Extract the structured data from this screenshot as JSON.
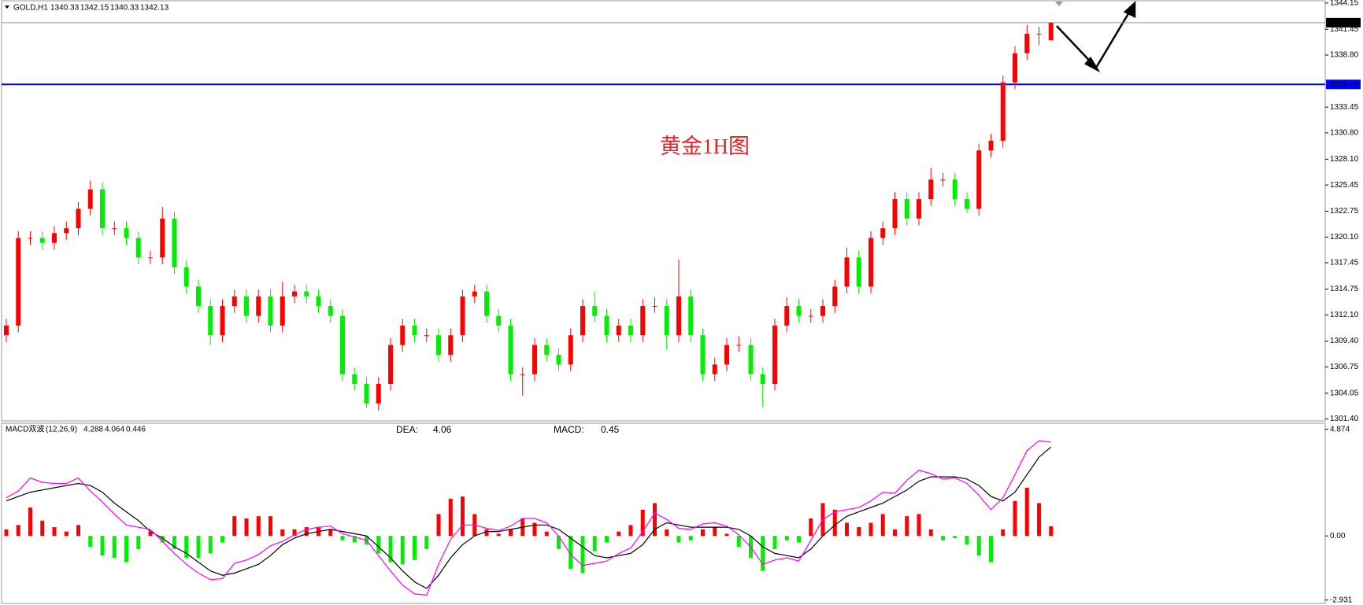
{
  "chart_data": [
    {
      "type": "candlestick",
      "header": {
        "symbol": "GOLD,H1",
        "open": 1340.33,
        "high": 1342.15,
        "low": 1340.33,
        "close": 1342.13
      },
      "annotation": "黄金1H图",
      "current_price": 1342.13,
      "hline": {
        "value": 1335.79,
        "color": "#0000ff"
      },
      "up_color": "#ff0000",
      "down_color": "#00ee00",
      "ylim": [
        1301.2,
        1344.3
      ],
      "yticks": [
        1344.15,
        1341.45,
        {
          "value": 1338.8,
          "label": "1338.80"
        },
        1333.45,
        {
          "value": 1330.8,
          "label": "1330.80"
        },
        {
          "value": 1328.1,
          "label": "1328.10"
        },
        1325.45,
        1322.75,
        {
          "value": 1320.1,
          "label": "1320.10"
        },
        1317.45,
        1314.75,
        {
          "value": 1312.1,
          "label": "1312.10"
        },
        {
          "value": 1309.4,
          "label": "1309.40"
        },
        1306.75,
        1304.05,
        {
          "value": 1301.4,
          "label": "1301.40"
        }
      ],
      "candles": [
        [
          1310,
          1311.7,
          1309.3,
          1311
        ],
        [
          1311,
          1320.7,
          1310.3,
          1320
        ],
        [
          1320,
          1320.7,
          1319.3,
          1320
        ],
        [
          1320,
          1320.7,
          1318.8,
          1319.5
        ],
        [
          1319.5,
          1321.2,
          1318.8,
          1320.5
        ],
        [
          1320.5,
          1321.7,
          1319.8,
          1321
        ],
        [
          1321,
          1323.7,
          1320.3,
          1323
        ],
        [
          1323,
          1325.9,
          1322.3,
          1325
        ],
        [
          1325,
          1325.7,
          1320.3,
          1321
        ],
        [
          1321,
          1321.7,
          1320.3,
          1321
        ],
        [
          1321,
          1321.7,
          1319.3,
          1320
        ],
        [
          1320,
          1320.7,
          1317.3,
          1318
        ],
        [
          1318,
          1318.7,
          1317.3,
          1318
        ],
        [
          1318,
          1323.2,
          1317.3,
          1322
        ],
        [
          1322,
          1322.7,
          1316.3,
          1317
        ],
        [
          1317,
          1317.7,
          1314.3,
          1315
        ],
        [
          1315,
          1315.7,
          1312.3,
          1313
        ],
        [
          1313,
          1313.7,
          1309,
          1310
        ],
        [
          1310,
          1313.7,
          1309.3,
          1313
        ],
        [
          1313,
          1314.7,
          1312.3,
          1314
        ],
        [
          1314,
          1314.7,
          1311.3,
          1312
        ],
        [
          1312,
          1314.7,
          1311.3,
          1314
        ],
        [
          1314,
          1314.7,
          1310.3,
          1311
        ],
        [
          1311,
          1315.5,
          1310.3,
          1314
        ],
        [
          1314,
          1315.2,
          1313.3,
          1314.5
        ],
        [
          1314.5,
          1315.2,
          1313.3,
          1314
        ],
        [
          1314,
          1314.7,
          1312.3,
          1313
        ],
        [
          1313,
          1313.7,
          1311.3,
          1312
        ],
        [
          1312,
          1312.7,
          1305.3,
          1306
        ],
        [
          1306,
          1306.7,
          1304.3,
          1305
        ],
        [
          1305,
          1305.7,
          1302.6,
          1303
        ],
        [
          1303,
          1305.7,
          1302.3,
          1305
        ],
        [
          1305,
          1309.7,
          1304.3,
          1309
        ],
        [
          1309,
          1311.7,
          1308.3,
          1311
        ],
        [
          1311,
          1311.7,
          1309.3,
          1310
        ],
        [
          1310,
          1310.7,
          1309.3,
          1310
        ],
        [
          1310,
          1310.7,
          1307.3,
          1308
        ],
        [
          1308,
          1310.7,
          1307.3,
          1310
        ],
        [
          1310,
          1314.7,
          1309.3,
          1314
        ],
        [
          1314,
          1315.2,
          1313.3,
          1314.5
        ],
        [
          1314.5,
          1315.2,
          1311.3,
          1312
        ],
        [
          1312,
          1312.7,
          1310.3,
          1311
        ],
        [
          1311,
          1311.7,
          1305.3,
          1306
        ],
        [
          1306,
          1306.7,
          1303.8,
          1306
        ],
        [
          1306,
          1309.7,
          1305.3,
          1309
        ],
        [
          1309,
          1309.7,
          1307.3,
          1308
        ],
        [
          1308,
          1308.7,
          1306.3,
          1307
        ],
        [
          1307,
          1310.7,
          1306.3,
          1310
        ],
        [
          1310,
          1313.7,
          1309.3,
          1313
        ],
        [
          1313,
          1314.5,
          1311.3,
          1312
        ],
        [
          1312,
          1312.7,
          1309.3,
          1310
        ],
        [
          1310,
          1311.7,
          1309.3,
          1311
        ],
        [
          1311,
          1311.7,
          1309.3,
          1310
        ],
        [
          1310,
          1313.7,
          1309.3,
          1313
        ],
        [
          1313,
          1313.9,
          1312.3,
          1313
        ],
        [
          1313,
          1313.7,
          1308.5,
          1310
        ],
        [
          1310,
          1317.8,
          1309.3,
          1314
        ],
        [
          1314,
          1314.7,
          1309.3,
          1310
        ],
        [
          1310,
          1310.7,
          1305.3,
          1306
        ],
        [
          1306,
          1307.7,
          1305.3,
          1307
        ],
        [
          1307,
          1309.7,
          1306.3,
          1309
        ],
        [
          1309,
          1309.9,
          1308.3,
          1309
        ],
        [
          1309,
          1309.7,
          1305.3,
          1306
        ],
        [
          1306,
          1306.7,
          1302.6,
          1305
        ],
        [
          1305,
          1311.7,
          1304.3,
          1311
        ],
        [
          1311,
          1313.9,
          1310.3,
          1313
        ],
        [
          1313,
          1313.7,
          1311.3,
          1312
        ],
        [
          1312,
          1312.7,
          1311.3,
          1312
        ],
        [
          1312,
          1313.7,
          1311.3,
          1313
        ],
        [
          1313,
          1315.7,
          1312.3,
          1315
        ],
        [
          1315,
          1319,
          1314.3,
          1318
        ],
        [
          1318,
          1318.7,
          1314.3,
          1315
        ],
        [
          1315,
          1320.7,
          1314.3,
          1320
        ],
        [
          1320,
          1321.7,
          1319.3,
          1321
        ],
        [
          1321,
          1324.7,
          1320.3,
          1324
        ],
        [
          1324,
          1324.7,
          1321.3,
          1322
        ],
        [
          1322,
          1324.7,
          1321.3,
          1324
        ],
        [
          1324,
          1327.2,
          1323.3,
          1326
        ],
        [
          1326,
          1326.7,
          1325.3,
          1326
        ],
        [
          1326,
          1326.7,
          1323.3,
          1324
        ],
        [
          1324,
          1324.7,
          1322.6,
          1323
        ],
        [
          1323,
          1329.7,
          1322.3,
          1329
        ],
        [
          1329,
          1330.7,
          1328.3,
          1330
        ],
        [
          1330,
          1336.7,
          1329.3,
          1336
        ],
        [
          1336,
          1339.7,
          1335.3,
          1339
        ],
        [
          1339,
          1341.9,
          1338.3,
          1341
        ],
        [
          1341,
          1341.7,
          1339.8,
          1341
        ],
        [
          1340.33,
          1342.15,
          1340.33,
          1342.13
        ]
      ]
    },
    {
      "type": "macd",
      "indicator": "MACD双波",
      "params": "(12,26,9)",
      "dif_last": 4.288,
      "dea_last": 4.064,
      "hist_last": 0.446,
      "dea_label": "DEA:",
      "dea_value": 4.06,
      "dea_color": "#ffd700",
      "macd_label": "MACD:",
      "macd_value": 0.45,
      "macd_color": "#ff0000",
      "pos_color": "#ff0000",
      "neg_color": "#00ee00",
      "dif_color": "#ff00ff",
      "signal_color": "#000000",
      "ylim": [
        -3.05,
        5.15
      ],
      "yticks": [
        4.874,
        {
          "value": 0,
          "label": "0.00"
        },
        -2.931
      ],
      "hist": [
        0.3,
        0.5,
        1.3,
        0.7,
        0.4,
        0.2,
        0.5,
        -0.5,
        -0.9,
        -1.0,
        -1.2,
        -0.6,
        0.2,
        -0.3,
        -0.6,
        -1.0,
        -1.0,
        -0.8,
        -0.3,
        0.9,
        0.8,
        0.9,
        0.9,
        0.3,
        0.3,
        0.4,
        0.4,
        0.3,
        -0.2,
        -0.3,
        -0.4,
        -0.8,
        -1.2,
        -1.3,
        -1.1,
        -0.6,
        1.0,
        1.7,
        1.8,
        1.0,
        0.3,
        0.1,
        0.3,
        0.8,
        0.6,
        0.2,
        -0.6,
        -1.5,
        -1.7,
        -0.7,
        -0.3,
        0.2,
        0.5,
        1.2,
        1.5,
        0.3,
        -0.3,
        -0.2,
        0.3,
        0.4,
        0.1,
        -0.5,
        -1.0,
        -1.6,
        -0.6,
        -0.2,
        -0.3,
        0.8,
        1.5,
        1.2,
        0.6,
        0.4,
        0.6,
        1.0,
        0.3,
        0.9,
        1.0,
        0.3,
        -0.2,
        -0.1,
        -0.4,
        -0.9,
        -1.2,
        0.3,
        1.6,
        2.2,
        1.5,
        0.446
      ],
      "dif": [
        1.75,
        2.05,
        2.65,
        2.45,
        2.4,
        2.4,
        2.65,
        2.05,
        1.55,
        1.0,
        0.5,
        0.4,
        0.3,
        -0.25,
        -0.8,
        -1.3,
        -1.7,
        -2.0,
        -1.95,
        -1.25,
        -1.1,
        -0.85,
        -0.45,
        -0.25,
        0.05,
        0.3,
        0.4,
        0.45,
        0.1,
        -0.05,
        -0.2,
        -0.9,
        -1.6,
        -2.25,
        -2.65,
        -2.7,
        -1.3,
        -0.15,
        0.5,
        0.5,
        0.35,
        0.25,
        0.45,
        0.8,
        0.8,
        0.6,
        0,
        -0.85,
        -1.35,
        -1.25,
        -1.15,
        -0.8,
        -0.55,
        0.2,
        1.05,
        0.75,
        0.35,
        0.3,
        0.55,
        0.6,
        0.45,
        0.05,
        -0.5,
        -1.3,
        -1.1,
        -1.0,
        -1.15,
        -0.2,
        0.75,
        1.1,
        1.2,
        1.3,
        1.6,
        2.0,
        1.95,
        2.55,
        3.0,
        2.85,
        2.6,
        2.65,
        2.4,
        1.85,
        1.2,
        1.75,
        2.8,
        3.9,
        4.35,
        4.288
      ],
      "dea": [
        1.6,
        1.8,
        2.0,
        2.1,
        2.2,
        2.3,
        2.4,
        2.3,
        2.0,
        1.5,
        1.1,
        0.7,
        0.2,
        -0.1,
        -0.5,
        -0.8,
        -1.2,
        -1.6,
        -1.8,
        -1.7,
        -1.5,
        -1.3,
        -0.9,
        -0.4,
        -0.1,
        0.1,
        0.2,
        0.3,
        0.2,
        0.1,
        0,
        -0.5,
        -1.0,
        -1.6,
        -2.1,
        -2.4,
        -1.8,
        -1.0,
        -0.4,
        0,
        0.2,
        0.2,
        0.3,
        0.4,
        0.5,
        0.5,
        0.3,
        -0.1,
        -0.5,
        -0.9,
        -1.0,
        -0.9,
        -0.8,
        -0.4,
        0.3,
        0.6,
        0.5,
        0.4,
        0.4,
        0.4,
        0.4,
        0.3,
        0,
        -0.5,
        -0.8,
        -0.9,
        -1.0,
        -0.6,
        0,
        0.5,
        0.9,
        1.1,
        1.3,
        1.5,
        1.8,
        2.1,
        2.5,
        2.7,
        2.7,
        2.7,
        2.6,
        2.3,
        1.8,
        1.6,
        2.0,
        2.8,
        3.6,
        4.064
      ]
    }
  ]
}
